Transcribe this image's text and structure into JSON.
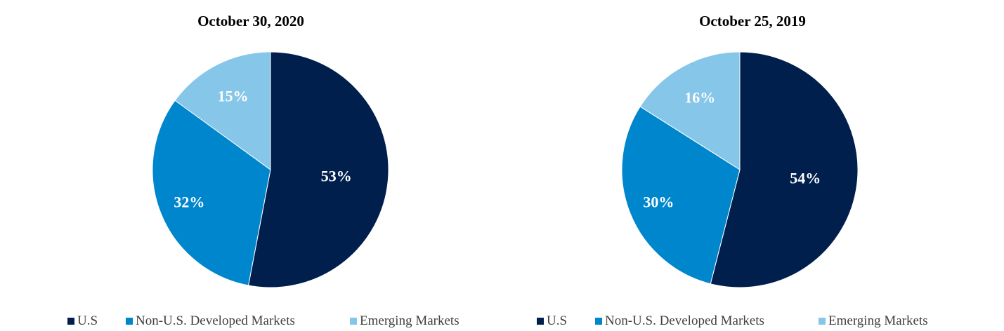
{
  "chart_data": [
    {
      "type": "pie",
      "title": "October 30, 2020",
      "slices": [
        {
          "name": "U.S",
          "value": 53,
          "label": "53%",
          "color": "#001f4d"
        },
        {
          "name": "Non-U.S. Developed Markets",
          "value": 32,
          "label": "32%",
          "color": "#0086cc"
        },
        {
          "name": "Emerging Markets",
          "value": 15,
          "label": "15%",
          "color": "#86c6e8"
        }
      ],
      "legend_position": "bottom"
    },
    {
      "type": "pie",
      "title": "October 25, 2019",
      "slices": [
        {
          "name": "U.S",
          "value": 54,
          "label": "54%",
          "color": "#001f4d"
        },
        {
          "name": "Non-U.S. Developed Markets",
          "value": 30,
          "label": "30%",
          "color": "#0086cc"
        },
        {
          "name": "Emerging Markets",
          "value": 16,
          "label": "16%",
          "color": "#86c6e8"
        }
      ],
      "legend_position": "bottom"
    }
  ]
}
